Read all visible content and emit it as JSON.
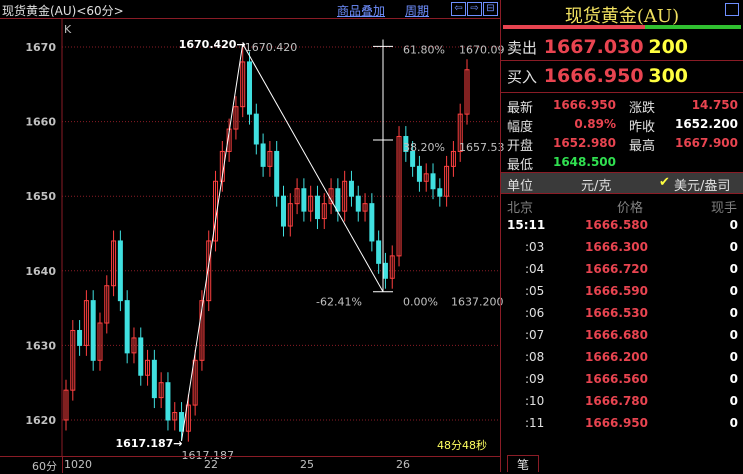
{
  "header": {
    "title": "现货黄金(AU)<60分>",
    "overlay_link": "商品叠加",
    "period_link": "周期",
    "nav_buttons": [
      "⇦",
      "⇨",
      "⊟"
    ]
  },
  "chart_data": {
    "type": "candlestick",
    "indicator_label": "K",
    "y_ticks": [
      1620,
      1630,
      1640,
      1650,
      1660,
      1670
    ],
    "ylim": [
      1615,
      1672
    ],
    "x_ticks": [
      "1020",
      "22",
      "25",
      "26"
    ],
    "period_label": "60分",
    "countdown": "48分48秒",
    "close": [
      1624,
      1632,
      1630,
      1636,
      1628,
      1633,
      1638,
      1644,
      1636,
      1629,
      1631,
      1626,
      1628,
      1623,
      1625,
      1620,
      1621,
      1618.5,
      1622,
      1628,
      1636,
      1644,
      1652,
      1656,
      1659,
      1662,
      1668,
      1661,
      1657,
      1654,
      1656,
      1650,
      1646,
      1649,
      1651,
      1648,
      1650,
      1647,
      1649,
      1651,
      1648,
      1652,
      1650,
      1648,
      1649,
      1644,
      1641,
      1639,
      1642,
      1658,
      1656,
      1654,
      1652,
      1653,
      1651,
      1650,
      1654,
      1656,
      1661,
      1666.95
    ],
    "first_open": 1620,
    "high_marker": {
      "value": 1670.42,
      "label": "1670.420",
      "arrow_label": "1670.420"
    },
    "low_marker": {
      "value": 1617.187,
      "label": "1617.187",
      "arrow_label": "1617.187"
    },
    "fib": {
      "levels": [
        {
          "pct": "61.80%",
          "price": "1670.09"
        },
        {
          "pct": "38.20%",
          "price": "1657.53"
        },
        {
          "pct": "0.00%",
          "price": "1637.200"
        }
      ],
      "extra_pct": "-62.41%"
    },
    "colors": {
      "up": "#ff4040",
      "down": "#40e0e0",
      "grid": "#8a1c26"
    }
  },
  "panel": {
    "title": "现货黄金(AU)",
    "sell_label": "卖出",
    "sell_price": "1667.030",
    "sell_vol": "200",
    "buy_label": "买入",
    "buy_price": "1666.950",
    "buy_vol": "300",
    "stats": [
      {
        "label": "最新",
        "value": "1666.950",
        "label2": "涨跌",
        "value2": "14.750"
      },
      {
        "label": "幅度",
        "value": "0.89%",
        "label2": "昨收",
        "value2": "1652.200"
      },
      {
        "label": "开盘",
        "value": "1652.980",
        "label2": "最高",
        "value2": "1667.900"
      },
      {
        "label": "最低",
        "value": "1648.500"
      }
    ],
    "unit_label": "单位",
    "unit_cny": "元/克",
    "unit_usd": "美元/盎司",
    "ticks_header": {
      "time": "北京",
      "price": "价格",
      "vol": "现手"
    },
    "ticks": [
      {
        "t": "15:11",
        "p": "1666.580",
        "v": "0"
      },
      {
        "t": ":03",
        "p": "1666.300",
        "v": "0"
      },
      {
        "t": ":04",
        "p": "1666.720",
        "v": "0"
      },
      {
        "t": ":05",
        "p": "1666.590",
        "v": "0"
      },
      {
        "t": ":06",
        "p": "1666.530",
        "v": "0"
      },
      {
        "t": ":07",
        "p": "1666.680",
        "v": "0"
      },
      {
        "t": ":08",
        "p": "1666.200",
        "v": "0"
      },
      {
        "t": ":09",
        "p": "1666.560",
        "v": "0"
      },
      {
        "t": ":10",
        "p": "1666.780",
        "v": "0"
      },
      {
        "t": ":11",
        "p": "1666.950",
        "v": "0"
      }
    ],
    "tab": "笔"
  }
}
